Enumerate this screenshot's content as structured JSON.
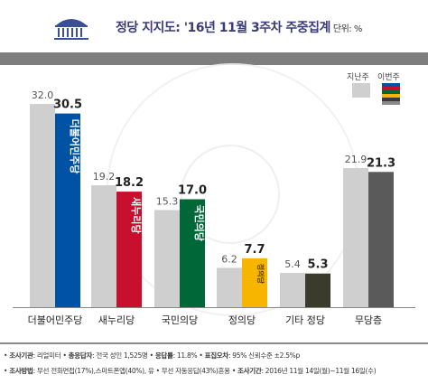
{
  "header": {
    "title": "정당 지지도: '16년 11월 3주차 주중집계",
    "unit": "단위: %"
  },
  "legend": {
    "previous_label": "지난주",
    "current_label": "이번주",
    "previous_color": "#cfcfcf",
    "current_colors": [
      "#0052a4",
      "#c8102e",
      "#006838",
      "#f7b500",
      "#3b3b3b",
      "#8a8a8a"
    ]
  },
  "chart_data": {
    "type": "bar",
    "categories": [
      "더불어민주당",
      "새누리당",
      "국민의당",
      "정의당",
      "기타 정당",
      "무당층"
    ],
    "series": [
      {
        "name": "지난주",
        "values": [
          32.0,
          19.2,
          15.3,
          6.2,
          5.4,
          21.9
        ]
      },
      {
        "name": "이번주",
        "values": [
          30.5,
          18.2,
          17.0,
          7.7,
          5.3,
          21.3
        ]
      }
    ],
    "value_labels_previous": [
      "32.0",
      "19.2",
      "15.3",
      "6.2",
      "5.4",
      "21.9"
    ],
    "value_labels_current": [
      "30.5",
      "18.2",
      "17.0",
      "7.7",
      "5.3",
      "21.3"
    ],
    "current_colors": [
      "#0052a4",
      "#c8102e",
      "#006838",
      "#f7b500",
      "#3b3b2b",
      "#5a5a5a"
    ],
    "bar_logo_text": [
      "더불어민주당",
      "새누리당",
      "국민의당",
      "정의당",
      "",
      ""
    ],
    "ylim": [
      0,
      35
    ],
    "grid": false,
    "legend_position": "top-right"
  },
  "footer": {
    "line1": {
      "k1": "조사기관",
      "v1": ": 리얼미터",
      "k2": "총응답자",
      "v2": ": 전국 성인 1,525명",
      "k3": "응답률",
      "v3": ": 11.8%",
      "k4": "표집오차",
      "v4": ": 95% 신뢰수준 ±2.5%p"
    },
    "line2": {
      "k1": "조사방법",
      "v1": ": 무선 전화면접(17%),스마트폰앱(40%), 유 • 무선 자동응답(43%)혼용",
      "k2": "조사기간",
      "v2": ": 2016년 11월 14일(월)~11월 16일(수)"
    }
  }
}
